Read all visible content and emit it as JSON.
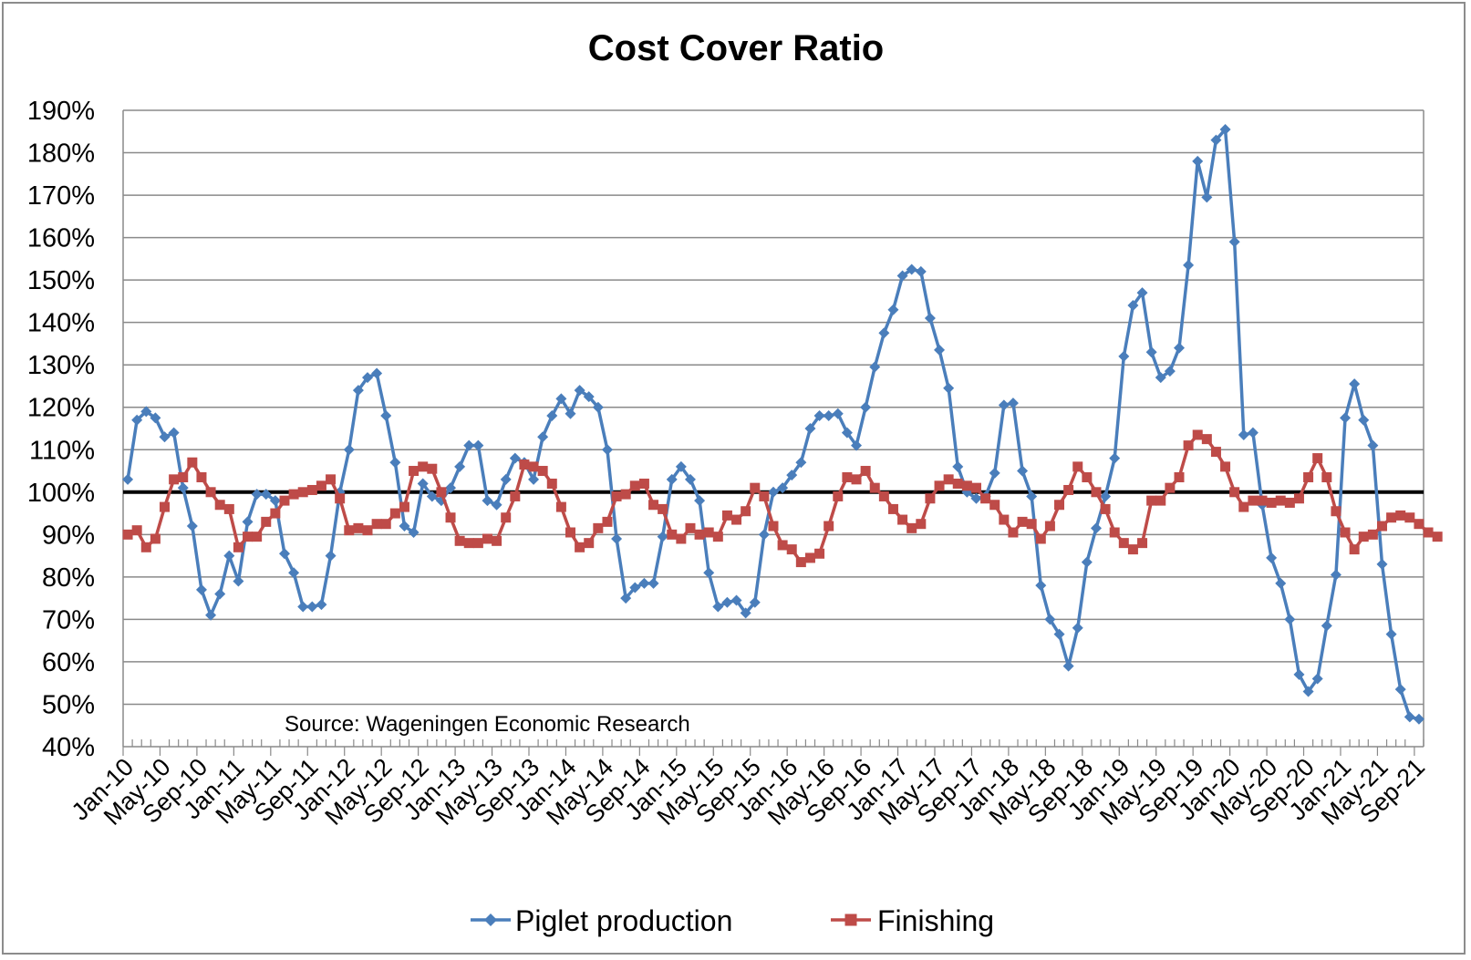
{
  "chart_data": {
    "type": "line",
    "title": "Cost Cover Ratio",
    "annotation": "Source: Wageningen Economic Research",
    "ylim": [
      40,
      190
    ],
    "yticks": [
      "40%",
      "50%",
      "60%",
      "70%",
      "80%",
      "90%",
      "100%",
      "110%",
      "120%",
      "130%",
      "140%",
      "150%",
      "160%",
      "170%",
      "180%",
      "190%"
    ],
    "xticks": [
      "Jan-10",
      "May-10",
      "Sep-10",
      "Jan-11",
      "May-11",
      "Sep-11",
      "Jan-12",
      "May-12",
      "Sep-12",
      "Jan-13",
      "May-13",
      "Sep-13",
      "Jan-14",
      "May-14",
      "Sep-14",
      "Jan-15",
      "May-15",
      "Sep-15",
      "Jan-16",
      "May-16",
      "Sep-16",
      "Jan-17",
      "May-17",
      "Sep-17",
      "Jan-18",
      "May-18",
      "Sep-18",
      "Jan-19",
      "May-19",
      "Sep-19",
      "Jan-20",
      "May-20",
      "Sep-20",
      "Jan-21",
      "May-21",
      "Sep-21"
    ],
    "start_month": "Jan-10",
    "reference_line": 100,
    "grid": true,
    "legend_position": "bottom",
    "series": [
      {
        "name": "Piglet production",
        "color": "#4a7ebb",
        "marker": "diamond",
        "values": [
          103,
          117,
          119,
          117.5,
          113,
          114,
          101,
          92,
          77,
          71,
          76,
          85,
          79,
          93,
          99.5,
          99.5,
          98,
          85.5,
          81,
          73,
          73,
          73.5,
          85,
          100,
          110,
          124,
          127,
          128,
          118,
          107,
          92,
          90.5,
          102,
          99,
          98,
          101,
          106,
          111,
          111,
          98,
          97,
          103,
          108,
          107,
          103,
          113,
          118,
          122,
          118.5,
          124,
          122.5,
          120,
          110,
          89,
          75,
          77.5,
          78.5,
          78.5,
          89.5,
          103,
          106,
          103,
          98,
          81,
          73,
          74,
          74.5,
          71.5,
          74,
          90,
          100,
          101,
          104,
          107,
          115,
          118,
          118,
          118.5,
          114,
          111,
          120,
          129.5,
          137.5,
          143,
          151,
          152.5,
          152,
          141,
          133.5,
          124.5,
          106,
          100,
          98.5,
          99,
          104.5,
          120.5,
          121,
          105,
          99,
          78,
          70,
          66.5,
          59,
          68,
          83.5,
          91.5,
          99,
          108,
          132,
          144,
          147,
          133,
          127,
          128.5,
          134,
          153.5,
          178,
          169.5,
          183,
          185.5,
          159,
          113.5,
          114,
          97,
          84.5,
          78.5,
          70,
          57,
          53,
          56,
          68.5,
          80.5,
          117.5,
          125.5,
          117,
          111,
          83,
          66.5,
          53.5,
          47,
          46.5
        ]
      },
      {
        "name": "Finishing",
        "color": "#be4b48",
        "marker": "square",
        "values": [
          90,
          91,
          87,
          89,
          96.5,
          103,
          103.5,
          107,
          103.5,
          100,
          97,
          96,
          87,
          89.5,
          89.5,
          93,
          95,
          98,
          99.5,
          100,
          100.5,
          101.5,
          103,
          98.5,
          91,
          91.5,
          91,
          92.5,
          92.5,
          95,
          96.5,
          105,
          106,
          105.5,
          100,
          94,
          88.5,
          88,
          88,
          89,
          88.5,
          94,
          99,
          106.5,
          106,
          105,
          102,
          96.5,
          90.5,
          87,
          88,
          91.5,
          93,
          99,
          99.5,
          101.5,
          102,
          97,
          96,
          90,
          89,
          91.5,
          90,
          90.5,
          89.5,
          94.5,
          93.5,
          95.5,
          101,
          99,
          92,
          87.5,
          86.5,
          83.5,
          84.5,
          85.5,
          92,
          99,
          103.5,
          103,
          105,
          101,
          99,
          96,
          93.5,
          91.5,
          92.5,
          98.5,
          101.5,
          103,
          102,
          101.5,
          101,
          98.5,
          97,
          93.5,
          90.5,
          93,
          92.5,
          89,
          92,
          97,
          100.5,
          106,
          103.5,
          100,
          96,
          90.5,
          88,
          86.5,
          88,
          98,
          98,
          101,
          103.5,
          111,
          113.5,
          112.5,
          109.5,
          106,
          100,
          96.5,
          98,
          98,
          97.5,
          98,
          97.5,
          98.5,
          103.5,
          108,
          103.5,
          95.5,
          90.5,
          86.5,
          89.5,
          90,
          92,
          94,
          94.5,
          94,
          92.5,
          90.5,
          89.5
        ]
      }
    ]
  }
}
